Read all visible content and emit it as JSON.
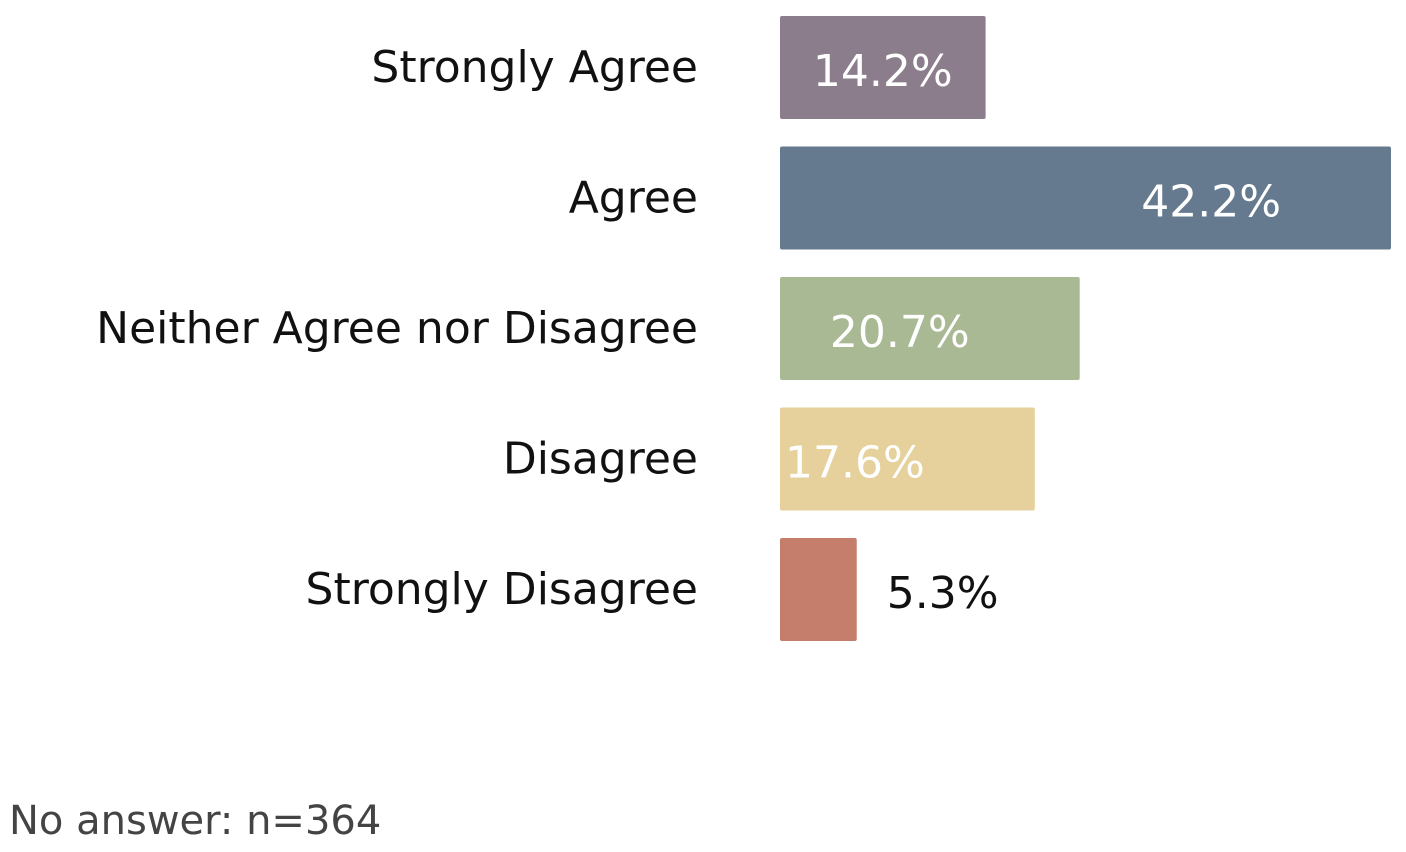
{
  "chart_data": {
    "type": "bar",
    "orientation": "horizontal",
    "categories": [
      "Strongly Agree",
      "Agree",
      "Neither Agree nor Disagree",
      "Disagree",
      "Strongly Disagree"
    ],
    "values": [
      14.2,
      42.2,
      20.7,
      17.6,
      5.3
    ],
    "value_labels": [
      "14.2%",
      "42.2%",
      "20.7%",
      "17.6%",
      "5.3%"
    ],
    "colors": [
      "#8b7d8b",
      "#667a8f",
      "#a9b994",
      "#e6d09c",
      "#c47e6b"
    ],
    "xlim": [
      0,
      42.2
    ],
    "grid": false,
    "title": "",
    "xlabel": "",
    "ylabel": ""
  },
  "footnote": "No answer: n=364"
}
